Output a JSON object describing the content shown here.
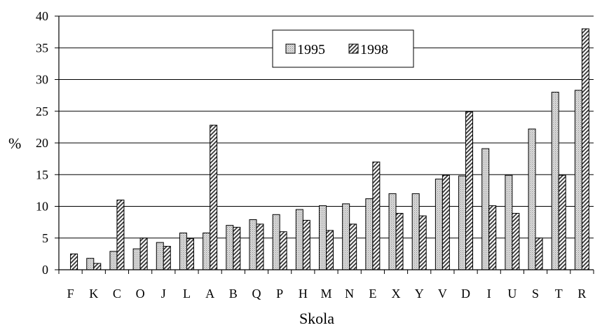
{
  "chart_data": {
    "type": "bar",
    "title": "",
    "xlabel": "Skola",
    "ylabel": "%",
    "ylim": [
      0,
      40
    ],
    "yticks": [
      0,
      5,
      10,
      15,
      20,
      25,
      30,
      35,
      40
    ],
    "grid": true,
    "legend_position": "top-center",
    "categories": [
      "F",
      "K",
      "C",
      "O",
      "J",
      "L",
      "A",
      "B",
      "Q",
      "P",
      "H",
      "M",
      "N",
      "E",
      "X",
      "Y",
      "V",
      "D",
      "I",
      "U",
      "S",
      "T",
      "R"
    ],
    "series": [
      {
        "name": "1995",
        "pattern": "dotted",
        "color": "#d9d9d9",
        "values": [
          0,
          1.8,
          2.9,
          3.3,
          4.3,
          5.8,
          5.8,
          7.0,
          7.9,
          8.7,
          9.5,
          10.1,
          10.4,
          11.2,
          12.0,
          12.0,
          14.3,
          14.8,
          19.1,
          14.9,
          22.2,
          28.0,
          28.3
        ]
      },
      {
        "name": "1998",
        "pattern": "hatched",
        "color": "#a6a6a6",
        "values": [
          2.5,
          1.0,
          11.0,
          5.0,
          3.7,
          4.9,
          22.8,
          6.7,
          7.2,
          6.0,
          7.8,
          6.2,
          7.2,
          17.0,
          8.9,
          8.5,
          14.9,
          24.9,
          10.1,
          8.9,
          5.0,
          14.9,
          38.0
        ]
      }
    ]
  }
}
